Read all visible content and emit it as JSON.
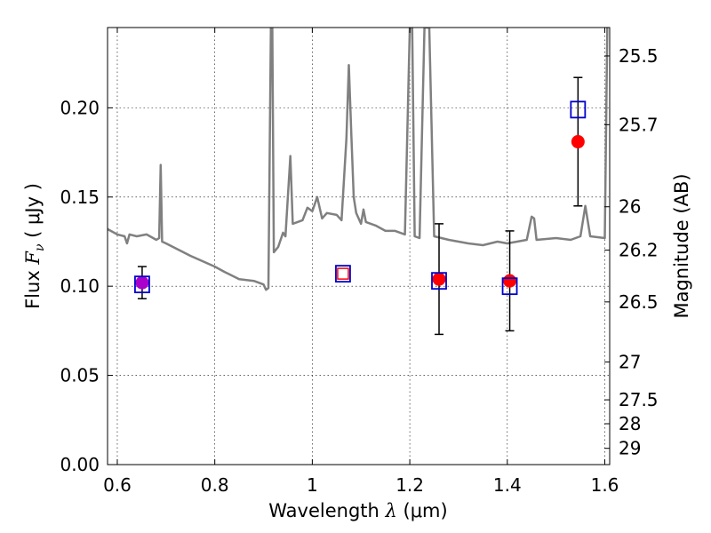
{
  "chart_data": {
    "type": "scatter",
    "xlabel": {
      "prefix": "Wavelength  ",
      "symbol": "λ",
      "units": " (μm)"
    },
    "ylabel": {
      "prefix": "Flux  ",
      "symbol": "F",
      "subscript": "ν",
      "units": "  ( μJy )"
    },
    "y2label": "Magnitude (AB)",
    "xlim": [
      0.58,
      1.61
    ],
    "ylim": [
      0.0,
      0.245
    ],
    "x_ticks": [
      0.6,
      0.8,
      1.0,
      1.2,
      1.4,
      1.6
    ],
    "x_tick_labels": [
      "0.6",
      "0.8",
      "1",
      "1.2",
      "1.4",
      "1.6"
    ],
    "y_ticks": [
      0.0,
      0.05,
      0.1,
      0.15,
      0.2
    ],
    "y_tick_labels": [
      "0.00",
      "0.05",
      "0.10",
      "0.15",
      "0.20"
    ],
    "mag_ticks": [
      25.5,
      25.7,
      26,
      26.2,
      26.5,
      27,
      27.5,
      28,
      29
    ],
    "mag_tick_labels": [
      "25.5",
      "25.7",
      "26",
      "26.2",
      "26.5",
      "27",
      "27.5",
      "28",
      "29"
    ],
    "grid": true,
    "colors": {
      "model_line": "#808080",
      "observed": "#ff0000",
      "model_box": "#0000cc",
      "errorbar": "#000000",
      "blended_marker": "#aa00cc"
    },
    "series": [
      {
        "kind": "model_spectrum_line",
        "points": [
          [
            0.58,
            0.132
          ],
          [
            0.6,
            0.129
          ],
          [
            0.615,
            0.128
          ],
          [
            0.62,
            0.124
          ],
          [
            0.625,
            0.129
          ],
          [
            0.64,
            0.128
          ],
          [
            0.66,
            0.129
          ],
          [
            0.68,
            0.126
          ],
          [
            0.686,
            0.127
          ],
          [
            0.689,
            0.168
          ],
          [
            0.692,
            0.125
          ],
          [
            0.7,
            0.124
          ],
          [
            0.75,
            0.117
          ],
          [
            0.8,
            0.111
          ],
          [
            0.82,
            0.108
          ],
          [
            0.85,
            0.104
          ],
          [
            0.88,
            0.103
          ],
          [
            0.9,
            0.101
          ],
          [
            0.905,
            0.098
          ],
          [
            0.91,
            0.099
          ],
          [
            0.915,
            0.245
          ],
          [
            0.918,
            0.245
          ],
          [
            0.921,
            0.119
          ],
          [
            0.93,
            0.122
          ],
          [
            0.94,
            0.13
          ],
          [
            0.945,
            0.128
          ],
          [
            0.955,
            0.173
          ],
          [
            0.96,
            0.135
          ],
          [
            0.98,
            0.137
          ],
          [
            0.99,
            0.144
          ],
          [
            1.0,
            0.142
          ],
          [
            1.01,
            0.15
          ],
          [
            1.02,
            0.138
          ],
          [
            1.03,
            0.141
          ],
          [
            1.05,
            0.14
          ],
          [
            1.06,
            0.137
          ],
          [
            1.07,
            0.183
          ],
          [
            1.075,
            0.224
          ],
          [
            1.08,
            0.185
          ],
          [
            1.085,
            0.15
          ],
          [
            1.09,
            0.141
          ],
          [
            1.1,
            0.135
          ],
          [
            1.105,
            0.143
          ],
          [
            1.11,
            0.136
          ],
          [
            1.13,
            0.134
          ],
          [
            1.15,
            0.131
          ],
          [
            1.17,
            0.131
          ],
          [
            1.19,
            0.129
          ],
          [
            1.2,
            0.245
          ],
          [
            1.205,
            0.245
          ],
          [
            1.21,
            0.128
          ],
          [
            1.22,
            0.127
          ],
          [
            1.23,
            0.245
          ],
          [
            1.24,
            0.245
          ],
          [
            1.25,
            0.128
          ],
          [
            1.28,
            0.126
          ],
          [
            1.3,
            0.125
          ],
          [
            1.32,
            0.124
          ],
          [
            1.35,
            0.123
          ],
          [
            1.38,
            0.125
          ],
          [
            1.4,
            0.124
          ],
          [
            1.42,
            0.125
          ],
          [
            1.44,
            0.126
          ],
          [
            1.45,
            0.139
          ],
          [
            1.455,
            0.138
          ],
          [
            1.46,
            0.126
          ],
          [
            1.5,
            0.127
          ],
          [
            1.53,
            0.126
          ],
          [
            1.55,
            0.128
          ],
          [
            1.56,
            0.145
          ],
          [
            1.57,
            0.128
          ],
          [
            1.6,
            0.127
          ],
          [
            1.605,
            0.245
          ]
        ]
      },
      {
        "kind": "model_photometry_boxes",
        "points": [
          {
            "x": 0.651,
            "y": 0.101
          },
          {
            "x": 1.063,
            "y": 0.107
          },
          {
            "x": 1.26,
            "y": 0.103
          },
          {
            "x": 1.405,
            "y": 0.1
          },
          {
            "x": 1.545,
            "y": 0.199
          }
        ]
      },
      {
        "kind": "observed_photometry",
        "points": [
          {
            "x": 0.651,
            "y": 0.102,
            "err": 0.009
          },
          {
            "x": 1.063,
            "y": 0.107,
            "err": 0.0
          },
          {
            "x": 1.26,
            "y": 0.104,
            "err": 0.031
          },
          {
            "x": 1.405,
            "y": 0.103,
            "err": 0.028
          },
          {
            "x": 1.545,
            "y": 0.181,
            "err": 0.036
          }
        ]
      }
    ]
  }
}
